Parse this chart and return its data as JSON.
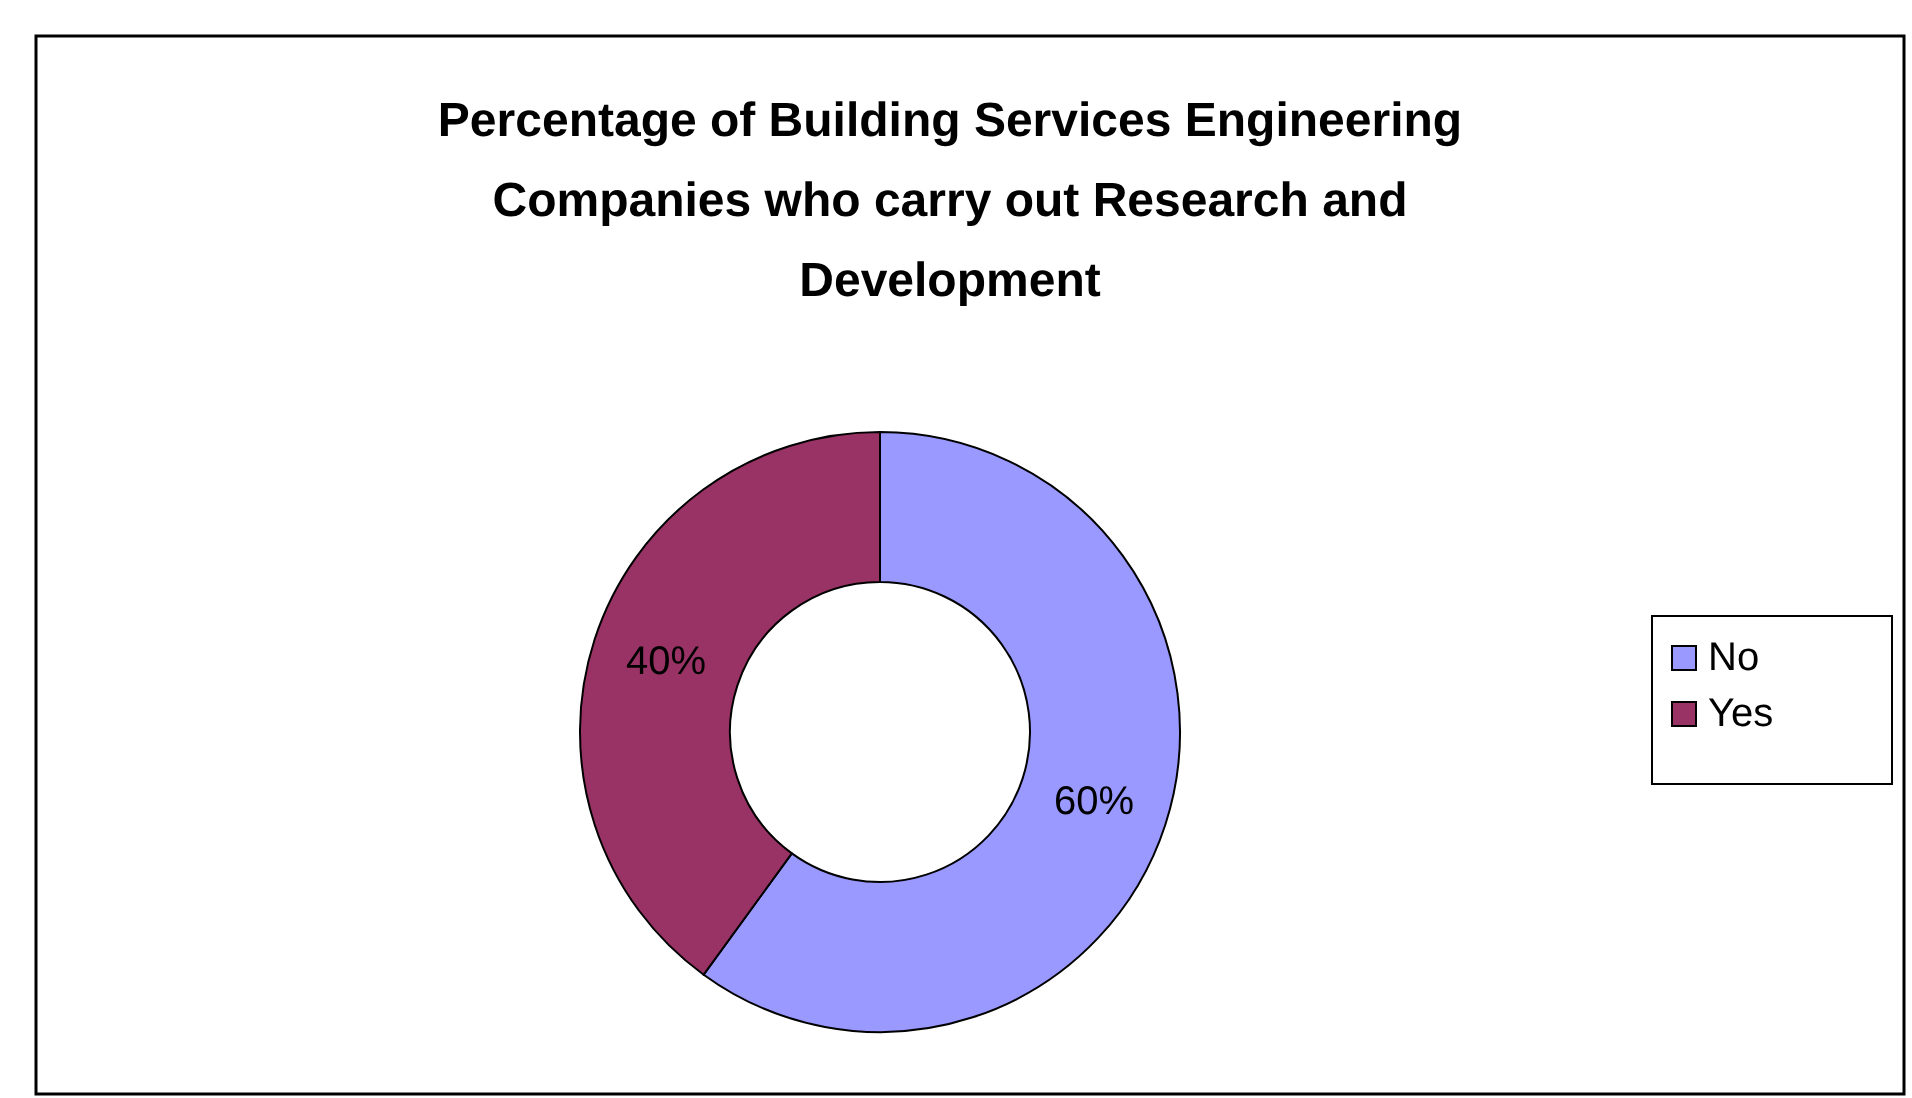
{
  "chart_data": {
    "type": "donut",
    "title": "Percentage of Building Services Engineering Companies who carry out Research and Development",
    "categories": [
      "No",
      "Yes"
    ],
    "values": [
      60,
      40
    ],
    "colors": [
      "#9999ff",
      "#993366"
    ],
    "value_labels": [
      "60%",
      "40%"
    ],
    "legend": "right"
  }
}
